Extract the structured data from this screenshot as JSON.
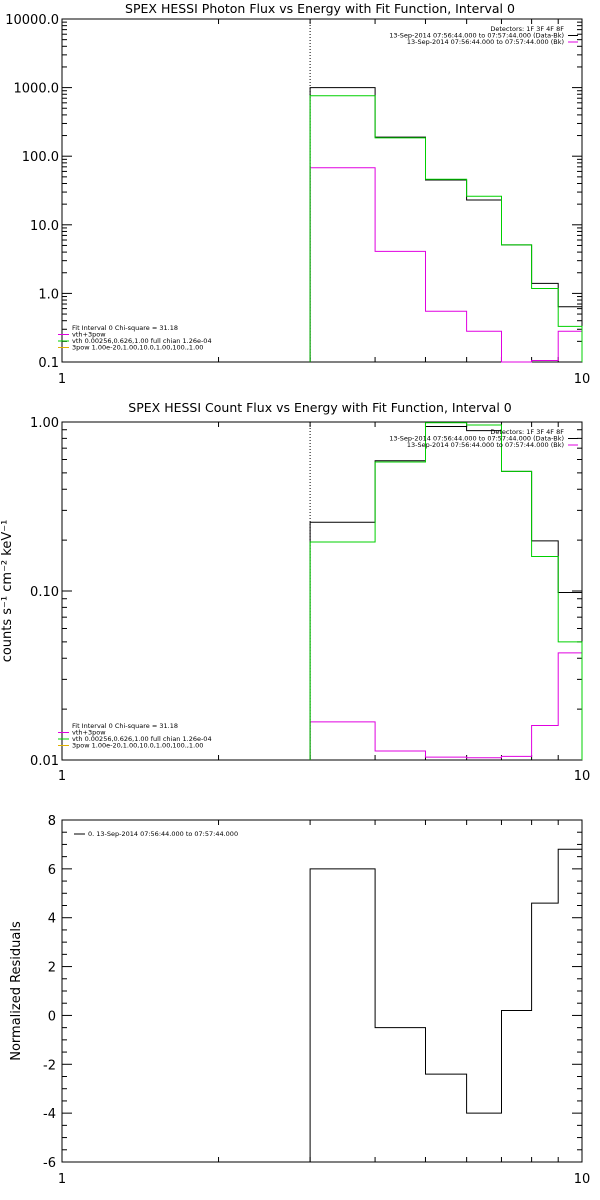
{
  "chart_data": [
    {
      "type": "step",
      "title": "SPEX HESSI Photon Flux vs Energy with Fit Function, Interval 0",
      "xscale": "log",
      "yscale": "log",
      "xlim": [
        1,
        10
      ],
      "ylim": [
        0.1,
        10000
      ],
      "xticks": [
        "1",
        "10"
      ],
      "yticks": [
        "0.1",
        "1.0",
        "10.0",
        "100.0",
        "1000.0",
        "10000.0"
      ],
      "vline": 3,
      "legend_tr": [
        {
          "text": "Detectors: 1F 3F 4F 8F",
          "color": ""
        },
        {
          "text": "13-Sep-2014 07:56:44.000 to 07:57:44.000 (Data-Bk)",
          "color": "#000000"
        },
        {
          "text": "13-Sep-2014 07:56:44.000 to 07:57:44.000 (Bk)",
          "color": "#e000e0"
        }
      ],
      "legend_bl": [
        {
          "text": "Fit Interval 0   Chi-square = 31.18",
          "color": ""
        },
        {
          "text": "vth+3pow",
          "color": "#e000e0"
        },
        {
          "text": "vth 0.00256,0.626,1.00  full chian 1.26e-04",
          "color": "#00d000"
        },
        {
          "text": "3pow 1.00e-20,1.00,10.0,1.00,100.,1.00",
          "color": "#e0b000"
        }
      ],
      "edges": [
        3,
        4,
        5,
        6,
        7,
        8,
        9,
        10
      ],
      "series": [
        {
          "label": "data",
          "color": "#000000",
          "values": [
            1000,
            190,
            45,
            23,
            5.1,
            1.4,
            0.64
          ]
        },
        {
          "label": "fit",
          "color": "#00d000",
          "values": [
            760,
            185,
            46,
            26,
            5.1,
            1.18,
            0.33
          ]
        },
        {
          "label": "background",
          "color": "#e000e0",
          "values": [
            68,
            4.1,
            0.55,
            0.28,
            0.095,
            0.105,
            0.28
          ]
        }
      ]
    },
    {
      "type": "step",
      "title": "SPEX HESSI Count Flux vs Energy with Fit Function, Interval 0",
      "xscale": "log",
      "yscale": "log",
      "xlim": [
        1,
        10
      ],
      "ylim": [
        0.01,
        1
      ],
      "xticks": [
        "1",
        "10"
      ],
      "yticks": [
        "0.01",
        "0.10",
        "1.00"
      ],
      "ylabel": "counts s⁻¹ cm⁻² keV⁻¹",
      "vline": 3,
      "legend_tr": [
        {
          "text": "Detectors: 1F 3F 4F 8F",
          "color": ""
        },
        {
          "text": "13-Sep-2014 07:56:44.000 to 07:57:44.000 (Data-Bk)",
          "color": "#000000"
        },
        {
          "text": "13-Sep-2014 07:56:44.000 to 07:57:44.000 (Bk)",
          "color": "#e000e0"
        }
      ],
      "legend_bl": [
        {
          "text": "Fit Interval 0   Chi-square = 31.18",
          "color": ""
        },
        {
          "text": "vth+3pow",
          "color": "#e000e0"
        },
        {
          "text": "vth 0.00256,0.626,1.00  full chian 1.26e-04",
          "color": "#00d000"
        },
        {
          "text": "3pow 1.00e-20,1.00,10.0,1.00,100.,1.00",
          "color": "#e0b000"
        }
      ],
      "edges": [
        3,
        4,
        5,
        6,
        7,
        8,
        9,
        10
      ],
      "series": [
        {
          "label": "data",
          "color": "#000000",
          "values": [
            0.255,
            0.59,
            0.94,
            0.89,
            0.51,
            0.198,
            0.098
          ]
        },
        {
          "label": "fit",
          "color": "#00d000",
          "values": [
            0.195,
            0.58,
            0.99,
            0.96,
            0.51,
            0.16,
            0.05
          ]
        },
        {
          "label": "background",
          "color": "#e000e0",
          "values": [
            0.0168,
            0.0113,
            0.0104,
            0.0103,
            0.0105,
            0.016,
            0.043
          ]
        }
      ]
    },
    {
      "type": "step",
      "title": "",
      "xscale": "log",
      "yscale": "linear",
      "xlim": [
        1,
        10
      ],
      "ylim": [
        -6,
        8
      ],
      "xticks": [
        "1",
        "10"
      ],
      "yticks": [
        "-6",
        "-4",
        "-2",
        "0",
        "2",
        "4",
        "6",
        "8"
      ],
      "ylabel": "Normalized Residuals",
      "legend_tl": [
        {
          "text": "0. 13-Sep-2014 07:56:44.000 to 07:57:44.000",
          "color": "#000000"
        }
      ],
      "edges": [
        3,
        4,
        5,
        6,
        7,
        8,
        9,
        10
      ],
      "series": [
        {
          "label": "residuals",
          "color": "#000000",
          "values": [
            6.0,
            -0.5,
            -2.4,
            -4.0,
            0.2,
            4.6,
            6.8
          ]
        }
      ]
    }
  ]
}
